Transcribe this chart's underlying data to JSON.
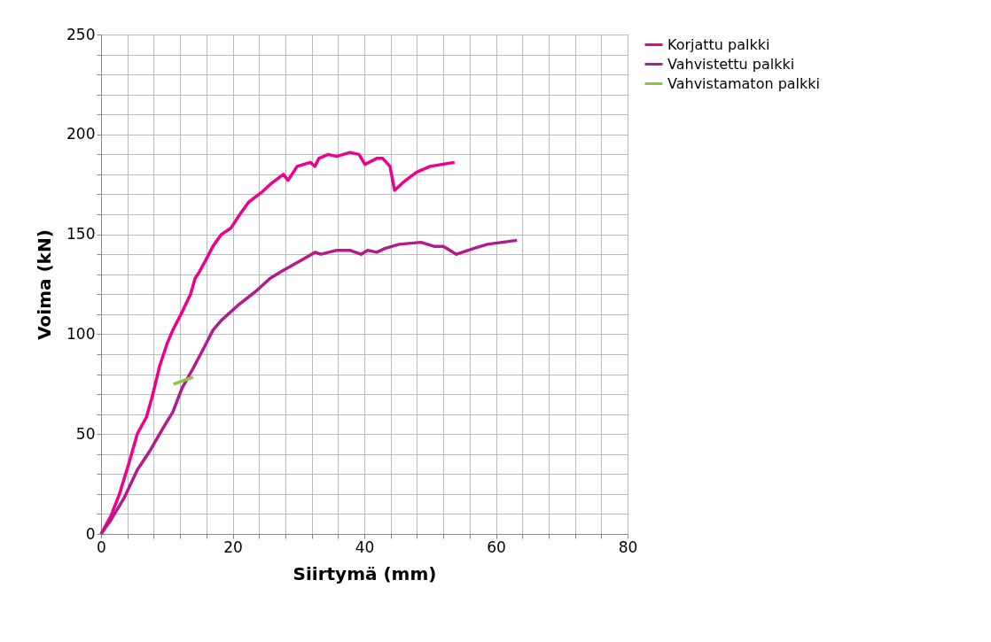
{
  "chart_data": {
    "type": "line",
    "xlabel": "Siirtymä (mm)",
    "ylabel": "Voima (kN)",
    "xlim": [
      0,
      80
    ],
    "ylim": [
      0,
      250
    ],
    "xticks": [
      0,
      {
        "value": 4,
        "label": null
      },
      {
        "value": 8,
        "label": null
      },
      {
        "value": 12,
        "label": null
      },
      {
        "value": 16,
        "label": null
      },
      20,
      {
        "value": 24,
        "label": null
      },
      {
        "value": 28,
        "label": null
      },
      {
        "value": 32,
        "label": null
      },
      {
        "value": 36,
        "label": null
      },
      40,
      {
        "value": 44,
        "label": null
      },
      {
        "value": 48,
        "label": null
      },
      {
        "value": 52,
        "label": null
      },
      {
        "value": 56,
        "label": null
      },
      60,
      {
        "value": 64,
        "label": null
      },
      {
        "value": 68,
        "label": null
      },
      {
        "value": 72,
        "label": null
      },
      {
        "value": 76,
        "label": null
      },
      80
    ],
    "yticks": [
      0,
      {
        "value": 10,
        "label": null
      },
      {
        "value": 20,
        "label": null
      },
      {
        "value": 30,
        "label": null
      },
      {
        "value": 40,
        "label": null
      },
      50,
      {
        "value": 60,
        "label": null
      },
      {
        "value": 70,
        "label": null
      },
      {
        "value": 80,
        "label": null
      },
      {
        "value": 90,
        "label": null
      },
      100,
      {
        "value": 110,
        "label": null
      },
      {
        "value": 120,
        "label": null
      },
      {
        "value": 130,
        "label": null
      },
      {
        "value": 140,
        "label": null
      },
      150,
      {
        "value": 160,
        "label": null
      },
      {
        "value": 170,
        "label": null
      },
      {
        "value": 180,
        "label": null
      },
      {
        "value": 190,
        "label": null
      },
      200,
      {
        "value": 210,
        "label": null
      },
      {
        "value": 220,
        "label": null
      },
      {
        "value": 230,
        "label": null
      },
      {
        "value": 240,
        "label": null
      },
      250
    ],
    "grid": true,
    "legend": "right",
    "marker": "none",
    "line_style": "solid",
    "series": [
      {
        "name": "Korjattu palkki",
        "color": "#ec008c",
        "x": [
          0,
          1.5,
          2.8,
          4.2,
          5.5,
          6.9,
          7.8,
          8.9,
          10,
          10.9,
          12.3,
          13.6,
          14.3,
          14.9,
          15.9,
          17,
          18.3,
          19.7,
          21.1,
          22.4,
          24.4,
          25.7,
          27.7,
          28.4,
          29.8,
          31.8,
          32.5,
          33.1,
          34.5,
          35.8,
          37.8,
          39.2,
          40.1,
          41.9,
          42.8,
          43.9,
          44.6,
          45.9,
          47.9,
          50,
          53.7
        ],
        "values": [
          0,
          9,
          20,
          35,
          50,
          58.5,
          69,
          84,
          95,
          102,
          111,
          120,
          128,
          131,
          137,
          144,
          150,
          153,
          160,
          166,
          171,
          175,
          180,
          177,
          184,
          186,
          184,
          188,
          190,
          189,
          191,
          190,
          185,
          188,
          188,
          184,
          172,
          176,
          181,
          184,
          186
        ]
      },
      {
        "name": "Vahvistettu palkki",
        "color": "#b5198e",
        "x": [
          0,
          1.5,
          3.5,
          5.5,
          7.5,
          9.6,
          10.9,
          12.3,
          14,
          15.6,
          17,
          18.3,
          21,
          23.7,
          25.7,
          27.7,
          30.4,
          32.5,
          33.4,
          35.8,
          37.8,
          39.5,
          40.5,
          41.9,
          43.2,
          45.3,
          48.6,
          50.6,
          52,
          54,
          56.7,
          58.7,
          63.2
        ],
        "values": [
          0,
          7,
          18,
          32,
          42,
          54,
          61,
          73,
          83,
          93,
          102,
          107,
          115,
          122,
          128,
          132,
          137,
          141,
          140,
          142,
          142,
          140,
          142,
          141,
          143,
          145,
          146,
          144,
          144,
          140,
          143,
          145,
          147
        ]
      },
      {
        "name": "Vahvistamaton palkki",
        "color": "#8dc63f",
        "x": [
          11,
          14
        ],
        "values": [
          75,
          78.5
        ]
      }
    ]
  }
}
